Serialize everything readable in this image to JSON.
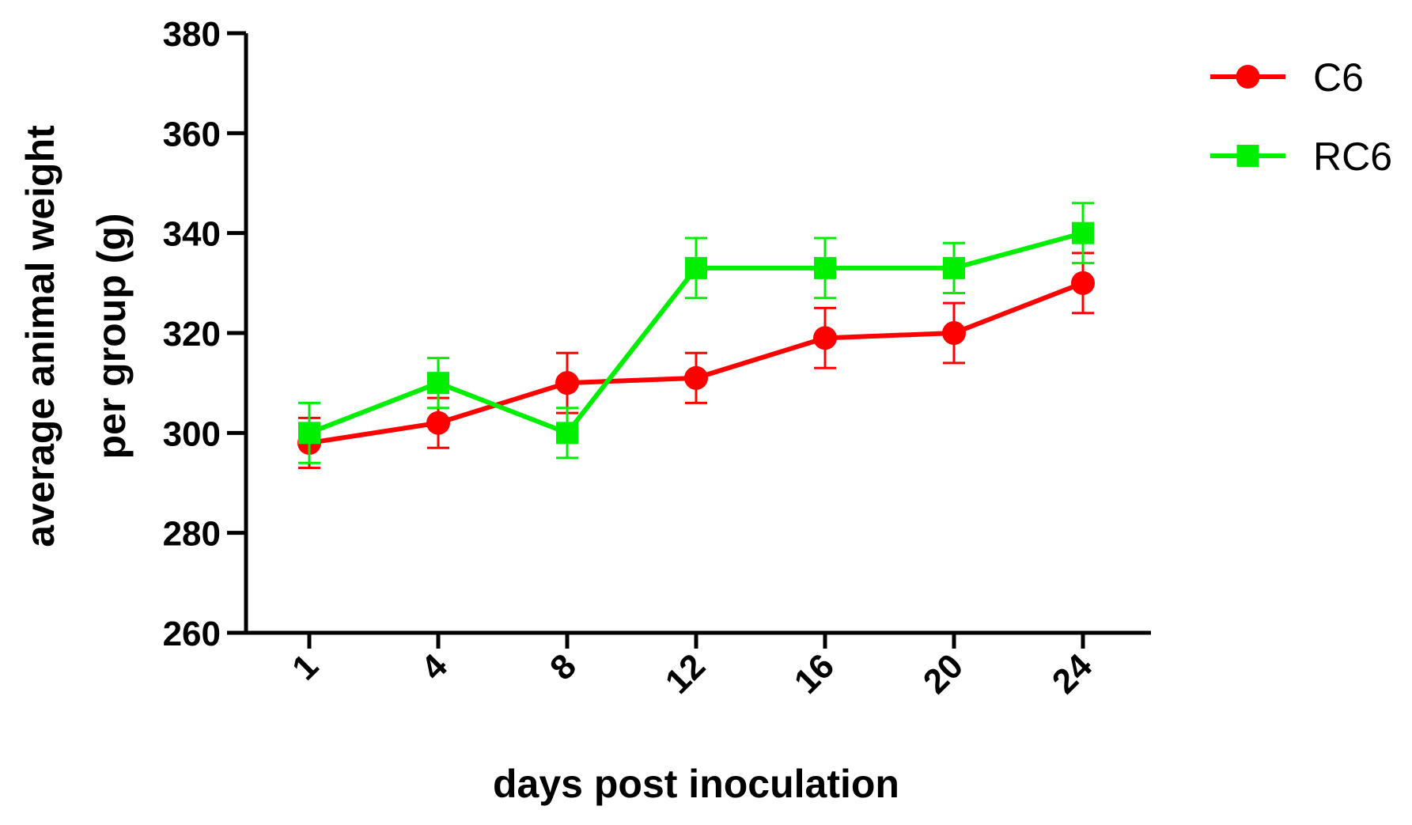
{
  "chart_data": {
    "type": "line",
    "title": "",
    "xlabel": "days post inoculation",
    "ylabel_line1": "average animal weight",
    "ylabel_line2": "per group (g)",
    "categories": [
      "1",
      "4",
      "8",
      "12",
      "16",
      "20",
      "24"
    ],
    "ylim": [
      260,
      380
    ],
    "yticks": [
      260,
      280,
      300,
      320,
      340,
      360,
      380
    ],
    "legend_position": "top-right",
    "series": [
      {
        "name": "C6",
        "color": "#ff0000",
        "marker": "circle",
        "values": [
          298,
          302,
          310,
          311,
          319,
          320,
          330
        ],
        "errors": [
          5,
          5,
          6,
          5,
          6,
          6,
          6
        ]
      },
      {
        "name": "RC6",
        "color": "#00ee00",
        "marker": "square",
        "values": [
          300,
          310,
          300,
          333,
          333,
          333,
          340
        ],
        "errors": [
          6,
          5,
          5,
          6,
          6,
          5,
          6
        ]
      }
    ]
  }
}
